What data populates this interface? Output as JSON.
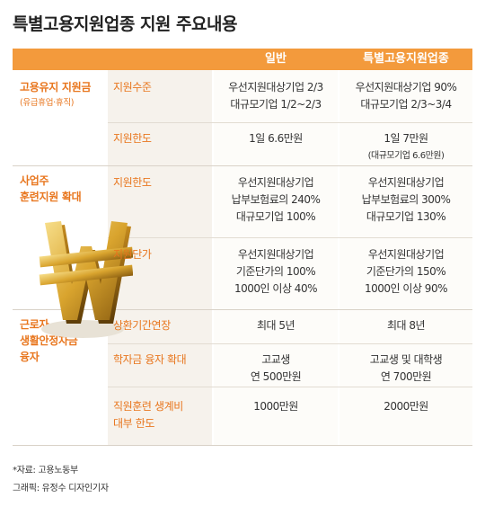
{
  "title": "특별고용지원업종 지원 주요내용",
  "header": {
    "general": "일반",
    "special": "특별고용지원업종"
  },
  "sections": {
    "s1": {
      "title": "고용유지 지원금",
      "note": "(유급휴업·휴직)"
    },
    "s2": {
      "line1": "사업주",
      "line2": "훈련지원 확대"
    },
    "s3": {
      "line1": "근로자",
      "line2": "생활안정자금",
      "line3": "융자"
    }
  },
  "rows": {
    "r1": {
      "item": "지원수준",
      "general": [
        "우선지원대상기업 2/3",
        "대규모기업 1/2~2/3"
      ],
      "special": [
        "우선지원대상기업 90%",
        "대규모기업 2/3~3/4"
      ]
    },
    "r2": {
      "item": "지원한도",
      "general": [
        "1일 6.6만원"
      ],
      "special": [
        "1일 7만원",
        "(대규모기업 6.6만원)"
      ]
    },
    "r3": {
      "item": "지원한도",
      "general": [
        "우선지원대상기업",
        "납부보험료의 240%",
        "대규모기업 100%"
      ],
      "special": [
        "우선지원대상기업",
        "납부보험료의 300%",
        "대규모기업 130%"
      ]
    },
    "r4": {
      "item": "지원단가",
      "general": [
        "우선지원대상기업",
        "기준단가의 100%",
        "1000인 이상 40%"
      ],
      "special": [
        "우선지원대상기업",
        "기준단가의 150%",
        "1000인 이상 90%"
      ]
    },
    "r5": {
      "item": "상환기간연장",
      "general": [
        "최대 5년"
      ],
      "special": [
        "최대 8년"
      ]
    },
    "r6": {
      "item": "학자금 융자 확대",
      "general": [
        "고교생",
        "연 500만원"
      ],
      "special": [
        "고교생 및 대학생",
        "연 700만원"
      ]
    },
    "r7": {
      "item1": "직원훈련 생계비",
      "item2": "대부 한도",
      "general": [
        "1000만원"
      ],
      "special": [
        "2000만원"
      ]
    }
  },
  "footer": {
    "source": "*자료: 고용노동부",
    "credit": "그래픽: 유정수 디자인기자"
  },
  "colors": {
    "accent": "#f39a3c",
    "accent_text": "#e8761e"
  },
  "icons": {
    "coin": "won-sign-coin-icon"
  }
}
